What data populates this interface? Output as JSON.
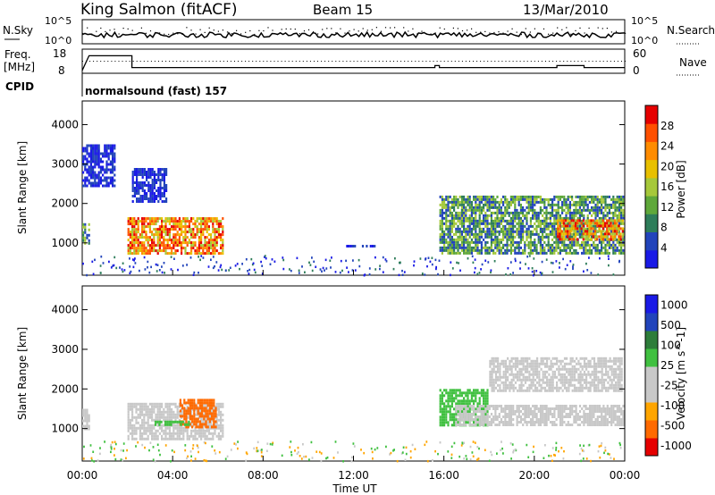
{
  "header": {
    "station": "King Salmon (fitACF)",
    "beam": "Beam 15",
    "date": "13/Mar/2010"
  },
  "noise_panel": {
    "left_label": "N.Sky",
    "right_label": "N.Search",
    "yticks": [
      "10^5",
      "10^0"
    ]
  },
  "freq_panel": {
    "left_label_1": "Freq.",
    "left_label_2": "[MHz]",
    "yticks_left": [
      "18",
      "8"
    ],
    "yticks_right": [
      "60",
      "0"
    ],
    "right_label": "Nave"
  },
  "cpid": {
    "label": "CPID",
    "program": "normalsound (fast) 157"
  },
  "time_axis": {
    "ticks": [
      "00:00",
      "04:00",
      "08:00",
      "12:00",
      "16:00",
      "20:00",
      "00:00"
    ],
    "label": "Time UT"
  },
  "colors": {
    "power_scale": [
      "#1a1ae6",
      "#2244bb",
      "#2e7d5a",
      "#5fa83a",
      "#a6c83a",
      "#e8c000",
      "#ff8c00",
      "#ff5000",
      "#e60000"
    ],
    "velocity_scale": [
      "#e60000",
      "#ff6a00",
      "#ffa500",
      "#c8c8c8",
      "#c8c8c8",
      "#40c040",
      "#2e7d3a",
      "#2244bb",
      "#1a1ae6"
    ]
  },
  "chart_data": [
    {
      "type": "heatmap",
      "title": "",
      "quantity": "Power",
      "xlabel": "Time UT",
      "ylabel": "Slant Range [km]",
      "xlim": [
        "00:00",
        "24:00"
      ],
      "ylim": [
        180,
        4600
      ],
      "yticks": [
        1000,
        2000,
        3000,
        4000
      ],
      "colorbar": {
        "label": "Power [dB]",
        "ticks": [
          4,
          8,
          12,
          16,
          20,
          24,
          28
        ]
      },
      "regions": [
        {
          "t_start": 2.0,
          "t_end": 6.3,
          "range_min": 650,
          "range_max": 1650,
          "level": "high",
          "peak_db": 28
        },
        {
          "t_start": 0.0,
          "t_end": 0.4,
          "range_min": 900,
          "range_max": 1500,
          "level": "medium"
        },
        {
          "t_start": 0.0,
          "t_end": 1.5,
          "range_min": 2400,
          "range_max": 3500,
          "level": "low"
        },
        {
          "t_start": 2.2,
          "t_end": 3.8,
          "range_min": 2000,
          "range_max": 2900,
          "level": "low"
        },
        {
          "t_start": 11.5,
          "t_end": 13.0,
          "range_min": 850,
          "range_max": 950,
          "level": "low"
        },
        {
          "t_start": 15.8,
          "t_end": 24.0,
          "range_min": 700,
          "range_max": 2200,
          "level": "medium"
        },
        {
          "t_start": 21.0,
          "t_end": 24.0,
          "range_min": 1000,
          "range_max": 1600,
          "level": "high"
        }
      ]
    },
    {
      "type": "heatmap",
      "title": "",
      "quantity": "Velocity",
      "xlabel": "Time UT",
      "ylabel": "Slant Range [km]",
      "xlim": [
        "00:00",
        "24:00"
      ],
      "ylim": [
        180,
        4600
      ],
      "yticks": [
        1000,
        2000,
        3000,
        4000
      ],
      "colorbar": {
        "label": "Velocity [m s^-1]",
        "ticks": [
          1000,
          500,
          100,
          25,
          -25,
          -100,
          -500,
          -1000
        ]
      },
      "regions": [
        {
          "t_start": 0.0,
          "t_end": 0.4,
          "range_min": 900,
          "range_max": 1500,
          "velocity": 0
        },
        {
          "t_start": 2.0,
          "t_end": 6.3,
          "range_min": 650,
          "range_max": 1650,
          "velocity": 0
        },
        {
          "t_start": 4.3,
          "t_end": 6.0,
          "range_min": 1000,
          "range_max": 1750,
          "velocity": -300
        },
        {
          "t_start": 3.2,
          "t_end": 4.8,
          "range_min": 1000,
          "range_max": 1200,
          "velocity": 80
        },
        {
          "t_start": 15.8,
          "t_end": 18.0,
          "range_min": 1000,
          "range_max": 2000,
          "velocity": 60
        },
        {
          "t_start": 16.5,
          "t_end": 24.0,
          "range_min": 1000,
          "range_max": 1600,
          "velocity": 0
        },
        {
          "t_start": 18.0,
          "t_end": 24.0,
          "range_min": 1900,
          "range_max": 2800,
          "velocity": 0
        }
      ]
    }
  ]
}
